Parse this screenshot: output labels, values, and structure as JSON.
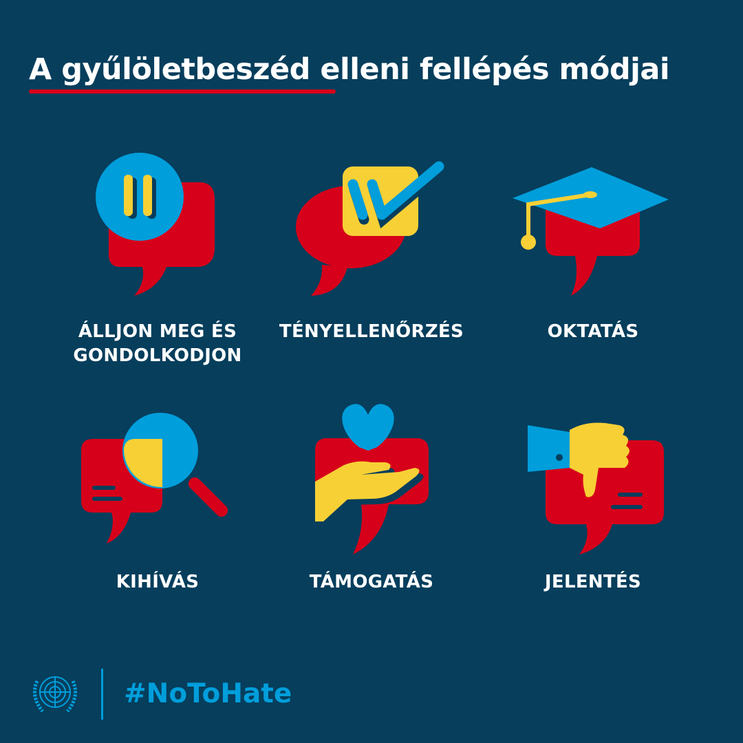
{
  "title": {
    "highlighted": "A gyűlöletbeszéd",
    "rest": " elleni fellépés módjai"
  },
  "items": [
    {
      "label_line1": "ÁLLJON MEG ÉS",
      "label_line2": "GONDOLKODJON",
      "icon": "pause-speech-bubble-icon"
    },
    {
      "label_line1": "TÉNYELLENŐRZÉS",
      "icon": "checkbox-speech-bubble-icon"
    },
    {
      "label_line1": "OKTATÁS",
      "icon": "graduation-cap-speech-bubble-icon"
    },
    {
      "label_line1": "KIHÍVÁS",
      "icon": "magnifier-speech-bubble-icon"
    },
    {
      "label_line1": "TÁMOGATÁS",
      "icon": "heart-hand-speech-bubble-icon"
    },
    {
      "label_line1": "JELENTÉS",
      "icon": "thumbs-down-speech-bubble-icon"
    }
  ],
  "footer": {
    "hashtag": "#NoToHate",
    "logo": "UN emblem"
  },
  "colors": {
    "background": "#063e5c",
    "red": "#d7001a",
    "blue": "#009edb",
    "yellow": "#f7d036"
  }
}
